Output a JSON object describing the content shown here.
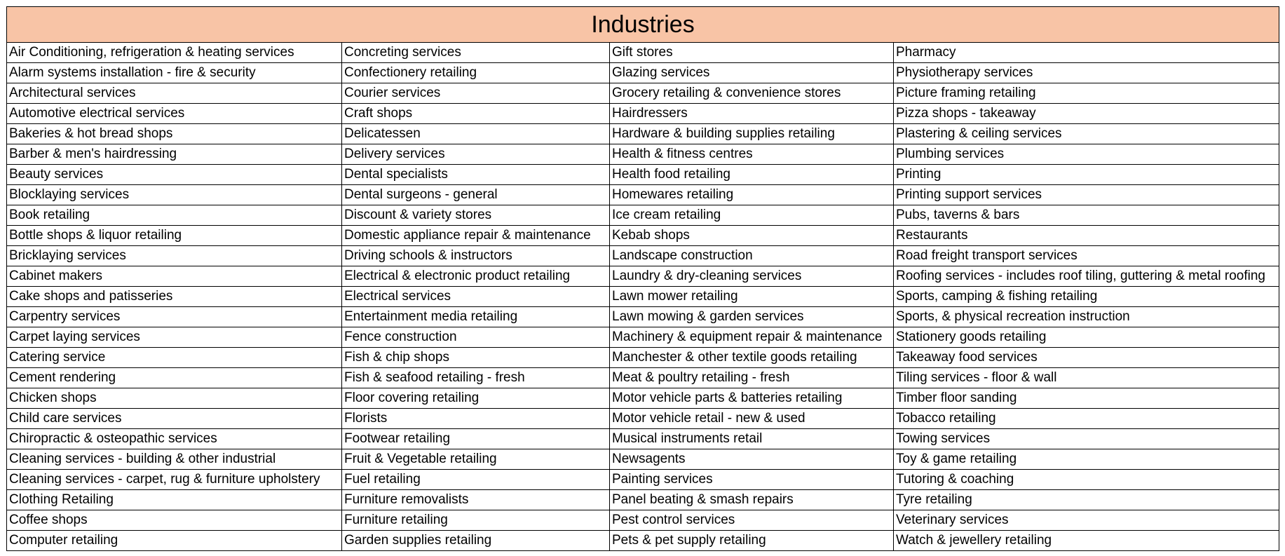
{
  "title": "Industries",
  "rows": [
    [
      "Air Conditioning, refrigeration & heating services",
      "Concreting services",
      "Gift stores",
      "Pharmacy"
    ],
    [
      "Alarm systems installation - fire & security",
      "Confectionery retailing",
      "Glazing services",
      "Physiotherapy services"
    ],
    [
      "Architectural services",
      "Courier services",
      "Grocery retailing & convenience stores",
      "Picture framing retailing"
    ],
    [
      "Automotive electrical services",
      "Craft shops",
      "Hairdressers",
      "Pizza shops - takeaway"
    ],
    [
      "Bakeries & hot bread shops",
      "Delicatessen",
      "Hardware & building supplies retailing",
      "Plastering & ceiling services"
    ],
    [
      "Barber & men's hairdressing",
      "Delivery services",
      "Health & fitness centres",
      "Plumbing services"
    ],
    [
      "Beauty services",
      "Dental specialists",
      "Health food retailing",
      "Printing"
    ],
    [
      "Blocklaying services",
      "Dental surgeons - general",
      "Homewares retailing",
      "Printing support services"
    ],
    [
      "Book retailing",
      "Discount & variety stores",
      "Ice cream retailing",
      "Pubs, taverns & bars"
    ],
    [
      "Bottle shops & liquor retailing",
      "Domestic appliance repair & maintenance",
      "Kebab shops",
      "Restaurants"
    ],
    [
      "Bricklaying services",
      "Driving schools & instructors",
      "Landscape construction",
      "Road freight transport services"
    ],
    [
      "Cabinet makers",
      "Electrical & electronic product retailing",
      "Laundry & dry-cleaning services",
      "Roofing services - includes roof tiling, guttering & metal roofing"
    ],
    [
      "Cake shops and patisseries",
      "Electrical services",
      "Lawn mower retailing",
      "Sports, camping & fishing retailing"
    ],
    [
      "Carpentry services",
      "Entertainment media retailing",
      "Lawn mowing & garden services",
      "Sports, & physical recreation instruction"
    ],
    [
      "Carpet laying services",
      "Fence construction",
      "Machinery & equipment repair & maintenance",
      "Stationery goods retailing"
    ],
    [
      "Catering service",
      "Fish & chip shops",
      "Manchester & other textile goods retailing",
      "Takeaway food services"
    ],
    [
      "Cement rendering",
      "Fish & seafood retailing - fresh",
      "Meat & poultry retailing - fresh",
      "Tiling services - floor & wall"
    ],
    [
      "Chicken shops",
      "Floor covering retailing",
      "Motor vehicle parts & batteries retailing",
      "Timber floor sanding"
    ],
    [
      "Child care services",
      "Florists",
      "Motor vehicle retail - new & used",
      "Tobacco retailing"
    ],
    [
      "Chiropractic & osteopathic services",
      "Footwear retailing",
      "Musical instruments retail",
      "Towing services"
    ],
    [
      "Cleaning services - building & other industrial",
      "Fruit & Vegetable retailing",
      "Newsagents",
      "Toy & game retailing"
    ],
    [
      "Cleaning services - carpet, rug & furniture upholstery",
      "Fuel retailing",
      "Painting services",
      "Tutoring & coaching"
    ],
    [
      "Clothing Retailing",
      "Furniture removalists",
      "Panel beating & smash repairs",
      "Tyre retailing"
    ],
    [
      "Coffee shops",
      "Furniture retailing",
      "Pest control services",
      "Veterinary services"
    ],
    [
      "Computer retailing",
      "Garden supplies retailing",
      "Pets & pet supply retailing",
      "Watch & jewellery retailing"
    ]
  ]
}
